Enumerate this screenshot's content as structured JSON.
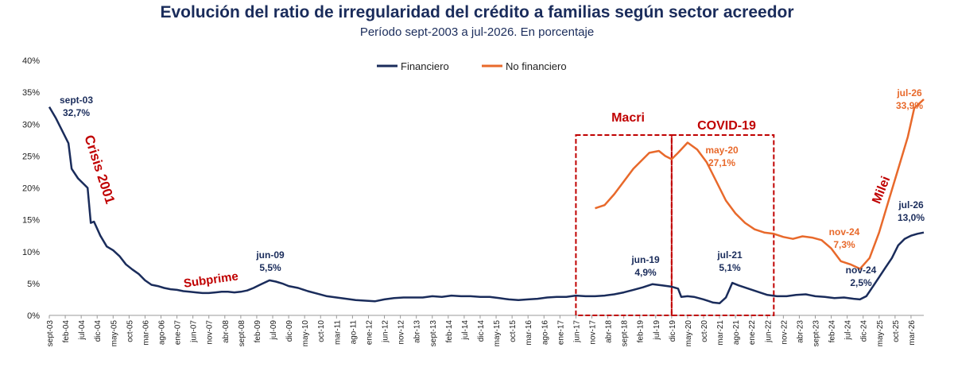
{
  "title": "Evolución del ratio de irregularidad del crédito a familias según sector acreedor",
  "subtitle": "Período sept-2003 a jul-2026. En porcentaje",
  "colors": {
    "financiero": "#1a2c5b",
    "no_financiero": "#e8692b",
    "annotation": "#c00000"
  },
  "chart_data": {
    "type": "line",
    "ylim": [
      0,
      40
    ],
    "yticks": [
      "0%",
      "5%",
      "10%",
      "15%",
      "20%",
      "25%",
      "30%",
      "35%",
      "40%"
    ],
    "ytick_values": [
      0,
      5,
      10,
      15,
      20,
      25,
      30,
      35,
      40
    ],
    "x_start": "2003-09",
    "x_end": "2026-07",
    "x_tick_labels": [
      "sept-03",
      "feb-04",
      "jul-04",
      "dic-04",
      "may-05",
      "oct-05",
      "mar-06",
      "ago-06",
      "ene-07",
      "jun-07",
      "nov-07",
      "abr-08",
      "sept-08",
      "feb-09",
      "jul-09",
      "dic-09",
      "may-10",
      "oct-10",
      "mar-11",
      "ago-11",
      "ene-12",
      "jun-12",
      "nov-12",
      "abr-13",
      "sept-13",
      "feb-14",
      "jul-14",
      "dic-14",
      "may-15",
      "oct-15",
      "mar-16",
      "ago-16",
      "ene-17",
      "jun-17",
      "nov-17",
      "abr-18",
      "sept-18",
      "feb-19",
      "jul-19",
      "dic-19",
      "may-20",
      "oct-20",
      "mar-21",
      "ago-21",
      "ene-22",
      "jun-22",
      "nov-22",
      "abr-23",
      "sept-23",
      "feb-24",
      "jul-24",
      "dic-24",
      "may-25",
      "oct-25",
      "mar-26"
    ],
    "legend": {
      "position": "top-center",
      "entries": [
        "Financiero",
        "No financiero"
      ]
    },
    "series": [
      {
        "name": "Financiero",
        "color": "#1a2c5b",
        "points": [
          [
            "2003-09",
            32.7
          ],
          [
            "2003-11",
            31.0
          ],
          [
            "2004-01",
            29.0
          ],
          [
            "2004-03",
            27.0
          ],
          [
            "2004-04",
            23.0
          ],
          [
            "2004-06",
            21.5
          ],
          [
            "2004-08",
            20.5
          ],
          [
            "2004-09",
            20.0
          ],
          [
            "2004-10",
            14.5
          ],
          [
            "2004-11",
            14.7
          ],
          [
            "2005-01",
            12.5
          ],
          [
            "2005-03",
            10.8
          ],
          [
            "2005-05",
            10.2
          ],
          [
            "2005-07",
            9.3
          ],
          [
            "2005-09",
            8.0
          ],
          [
            "2005-11",
            7.2
          ],
          [
            "2006-01",
            6.5
          ],
          [
            "2006-03",
            5.5
          ],
          [
            "2006-05",
            4.8
          ],
          [
            "2006-07",
            4.6
          ],
          [
            "2006-09",
            4.3
          ],
          [
            "2006-11",
            4.1
          ],
          [
            "2007-01",
            4.0
          ],
          [
            "2007-03",
            3.8
          ],
          [
            "2007-05",
            3.7
          ],
          [
            "2007-07",
            3.6
          ],
          [
            "2007-09",
            3.5
          ],
          [
            "2007-11",
            3.5
          ],
          [
            "2008-01",
            3.6
          ],
          [
            "2008-03",
            3.7
          ],
          [
            "2008-05",
            3.7
          ],
          [
            "2008-07",
            3.6
          ],
          [
            "2008-09",
            3.7
          ],
          [
            "2008-11",
            3.9
          ],
          [
            "2009-01",
            4.3
          ],
          [
            "2009-03",
            4.8
          ],
          [
            "2009-06",
            5.5
          ],
          [
            "2009-08",
            5.3
          ],
          [
            "2009-10",
            5.0
          ],
          [
            "2009-12",
            4.6
          ],
          [
            "2010-03",
            4.3
          ],
          [
            "2010-06",
            3.8
          ],
          [
            "2010-09",
            3.4
          ],
          [
            "2010-12",
            3.0
          ],
          [
            "2011-03",
            2.8
          ],
          [
            "2011-06",
            2.6
          ],
          [
            "2011-09",
            2.4
          ],
          [
            "2011-12",
            2.3
          ],
          [
            "2012-03",
            2.2
          ],
          [
            "2012-06",
            2.5
          ],
          [
            "2012-09",
            2.7
          ],
          [
            "2012-12",
            2.8
          ],
          [
            "2013-03",
            2.8
          ],
          [
            "2013-06",
            2.8
          ],
          [
            "2013-09",
            3.0
          ],
          [
            "2013-12",
            2.9
          ],
          [
            "2014-03",
            3.1
          ],
          [
            "2014-06",
            3.0
          ],
          [
            "2014-09",
            3.0
          ],
          [
            "2014-12",
            2.9
          ],
          [
            "2015-03",
            2.9
          ],
          [
            "2015-06",
            2.7
          ],
          [
            "2015-09",
            2.5
          ],
          [
            "2015-12",
            2.4
          ],
          [
            "2016-03",
            2.5
          ],
          [
            "2016-06",
            2.6
          ],
          [
            "2016-09",
            2.8
          ],
          [
            "2016-12",
            2.9
          ],
          [
            "2017-03",
            2.9
          ],
          [
            "2017-06",
            3.1
          ],
          [
            "2017-09",
            3.0
          ],
          [
            "2017-12",
            3.0
          ],
          [
            "2018-03",
            3.1
          ],
          [
            "2018-06",
            3.3
          ],
          [
            "2018-09",
            3.6
          ],
          [
            "2018-12",
            4.0
          ],
          [
            "2019-03",
            4.4
          ],
          [
            "2019-06",
            4.9
          ],
          [
            "2019-09",
            4.7
          ],
          [
            "2019-12",
            4.5
          ],
          [
            "2020-02",
            4.2
          ],
          [
            "2020-03",
            2.9
          ],
          [
            "2020-05",
            3.0
          ],
          [
            "2020-07",
            2.9
          ],
          [
            "2020-10",
            2.5
          ],
          [
            "2021-01",
            2.0
          ],
          [
            "2021-03",
            1.9
          ],
          [
            "2021-05",
            2.8
          ],
          [
            "2021-07",
            5.1
          ],
          [
            "2021-09",
            4.7
          ],
          [
            "2021-12",
            4.2
          ],
          [
            "2022-03",
            3.7
          ],
          [
            "2022-06",
            3.2
          ],
          [
            "2022-09",
            3.0
          ],
          [
            "2022-12",
            3.0
          ],
          [
            "2023-03",
            3.2
          ],
          [
            "2023-06",
            3.3
          ],
          [
            "2023-09",
            3.0
          ],
          [
            "2023-12",
            2.9
          ],
          [
            "2024-03",
            2.7
          ],
          [
            "2024-06",
            2.8
          ],
          [
            "2024-09",
            2.6
          ],
          [
            "2024-11",
            2.5
          ],
          [
            "2025-01",
            3.0
          ],
          [
            "2025-03",
            4.5
          ],
          [
            "2025-05",
            6.0
          ],
          [
            "2025-07",
            7.5
          ],
          [
            "2025-09",
            9.0
          ],
          [
            "2025-11",
            11.0
          ],
          [
            "2026-01",
            12.0
          ],
          [
            "2026-03",
            12.5
          ],
          [
            "2026-05",
            12.8
          ],
          [
            "2026-07",
            13.0
          ]
        ]
      },
      {
        "name": "No financiero",
        "color": "#e8692b",
        "points": [
          [
            "2017-12",
            16.8
          ],
          [
            "2018-03",
            17.3
          ],
          [
            "2018-06",
            19.0
          ],
          [
            "2018-09",
            21.0
          ],
          [
            "2018-12",
            23.0
          ],
          [
            "2019-03",
            24.5
          ],
          [
            "2019-05",
            25.5
          ],
          [
            "2019-08",
            25.8
          ],
          [
            "2019-10",
            25.0
          ],
          [
            "2019-12",
            24.5
          ],
          [
            "2020-02",
            25.5
          ],
          [
            "2020-05",
            27.1
          ],
          [
            "2020-08",
            26.0
          ],
          [
            "2020-11",
            24.0
          ],
          [
            "2021-02",
            21.0
          ],
          [
            "2021-05",
            18.0
          ],
          [
            "2021-08",
            16.0
          ],
          [
            "2021-11",
            14.5
          ],
          [
            "2022-02",
            13.5
          ],
          [
            "2022-05",
            13.0
          ],
          [
            "2022-08",
            12.8
          ],
          [
            "2022-11",
            12.3
          ],
          [
            "2023-02",
            12.0
          ],
          [
            "2023-05",
            12.4
          ],
          [
            "2023-08",
            12.2
          ],
          [
            "2023-11",
            11.8
          ],
          [
            "2024-02",
            10.5
          ],
          [
            "2024-05",
            8.5
          ],
          [
            "2024-08",
            8.0
          ],
          [
            "2024-11",
            7.3
          ],
          [
            "2025-02",
            9.0
          ],
          [
            "2025-05",
            13.0
          ],
          [
            "2025-08",
            18.0
          ],
          [
            "2025-11",
            23.0
          ],
          [
            "2026-02",
            28.0
          ],
          [
            "2026-04",
            32.5
          ],
          [
            "2026-07",
            33.9
          ]
        ]
      }
    ],
    "annotations": [
      {
        "lines": [
          "sept-03",
          "32,7%"
        ],
        "series": "Financiero"
      },
      {
        "lines": [
          "jun-09",
          "5,5%"
        ],
        "series": "Financiero"
      },
      {
        "lines": [
          "jun-19",
          "4,9%"
        ],
        "series": "Financiero"
      },
      {
        "lines": [
          "jul-21",
          "5,1%"
        ],
        "series": "Financiero"
      },
      {
        "lines": [
          "nov-24",
          "2,5%"
        ],
        "series": "Financiero"
      },
      {
        "lines": [
          "jul-26",
          "13,0%"
        ],
        "series": "Financiero"
      },
      {
        "lines": [
          "may-20",
          "27,1%"
        ],
        "series": "No financiero"
      },
      {
        "lines": [
          "nov-24",
          "7,3%"
        ],
        "series": "No financiero"
      },
      {
        "lines": [
          "jul-26",
          "33,9%"
        ],
        "series": "No financiero"
      }
    ],
    "events": [
      {
        "label": "Crisis 2001"
      },
      {
        "label": "Subprime"
      },
      {
        "label": "Macri",
        "box_start": "2017-06",
        "box_end": "2019-12"
      },
      {
        "label": "COVID-19",
        "box_start": "2019-12",
        "box_end": "2022-08"
      },
      {
        "label": "Milei"
      }
    ]
  }
}
